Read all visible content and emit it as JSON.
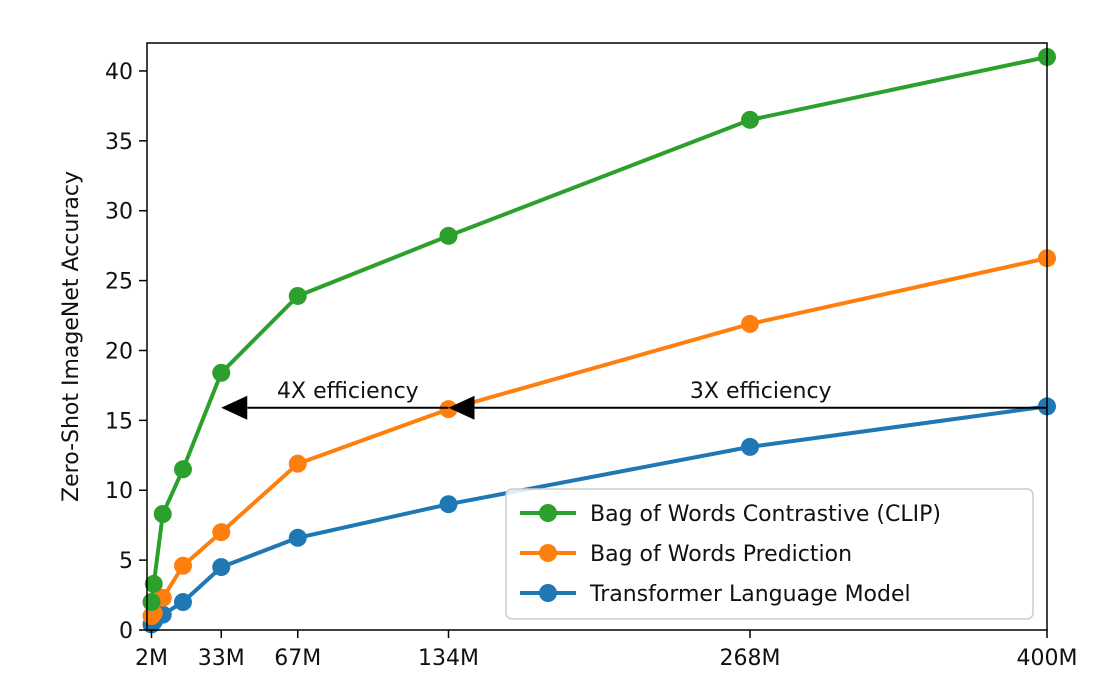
{
  "chart_data": {
    "type": "line",
    "title": "",
    "xlabel": "",
    "ylabel": "Zero-Shot ImageNet Accuracy",
    "xlim": [
      0,
      400
    ],
    "ylim": [
      0,
      42
    ],
    "x_ticks": [
      {
        "value": 2,
        "label": "2M"
      },
      {
        "value": 33,
        "label": "33M"
      },
      {
        "value": 67,
        "label": "67M"
      },
      {
        "value": 134,
        "label": "134M"
      },
      {
        "value": 268,
        "label": "268M"
      },
      {
        "value": 400,
        "label": "400M"
      }
    ],
    "y_ticks": [
      0,
      5,
      10,
      15,
      20,
      25,
      30,
      35,
      40
    ],
    "grid": false,
    "legend": {
      "placement": "lower-right"
    },
    "series": [
      {
        "name": "Bag of Words Contrastive (CLIP)",
        "color": "#2ca02c",
        "points": [
          [
            2,
            2.0
          ],
          [
            3,
            3.3
          ],
          [
            7,
            8.3
          ],
          [
            16,
            11.5
          ],
          [
            33,
            18.4
          ],
          [
            67,
            23.9
          ],
          [
            134,
            28.2
          ],
          [
            268,
            36.5
          ],
          [
            400,
            41.0
          ]
        ]
      },
      {
        "name": "Bag of Words Prediction",
        "color": "#ff7f0e",
        "points": [
          [
            2,
            1.0
          ],
          [
            3,
            1.2
          ],
          [
            7,
            2.3
          ],
          [
            16,
            4.6
          ],
          [
            33,
            7.0
          ],
          [
            67,
            11.9
          ],
          [
            134,
            15.8
          ],
          [
            268,
            21.9
          ],
          [
            400,
            26.6
          ]
        ]
      },
      {
        "name": "Transformer Language Model",
        "color": "#1f77b4",
        "points": [
          [
            2,
            0.4
          ],
          [
            3,
            0.6
          ],
          [
            7,
            1.1
          ],
          [
            16,
            2.0
          ],
          [
            33,
            4.5
          ],
          [
            67,
            6.6
          ],
          [
            134,
            9.0
          ],
          [
            268,
            13.1
          ],
          [
            400,
            16.0
          ]
        ]
      }
    ],
    "annotations": [
      {
        "text": "4X efficiency",
        "arrow_from": [
          134,
          15.9
        ],
        "arrow_to": [
          33,
          15.9
        ]
      },
      {
        "text": "3X efficiency",
        "arrow_from": [
          400,
          15.9
        ],
        "arrow_to": [
          134,
          15.9
        ]
      }
    ]
  }
}
